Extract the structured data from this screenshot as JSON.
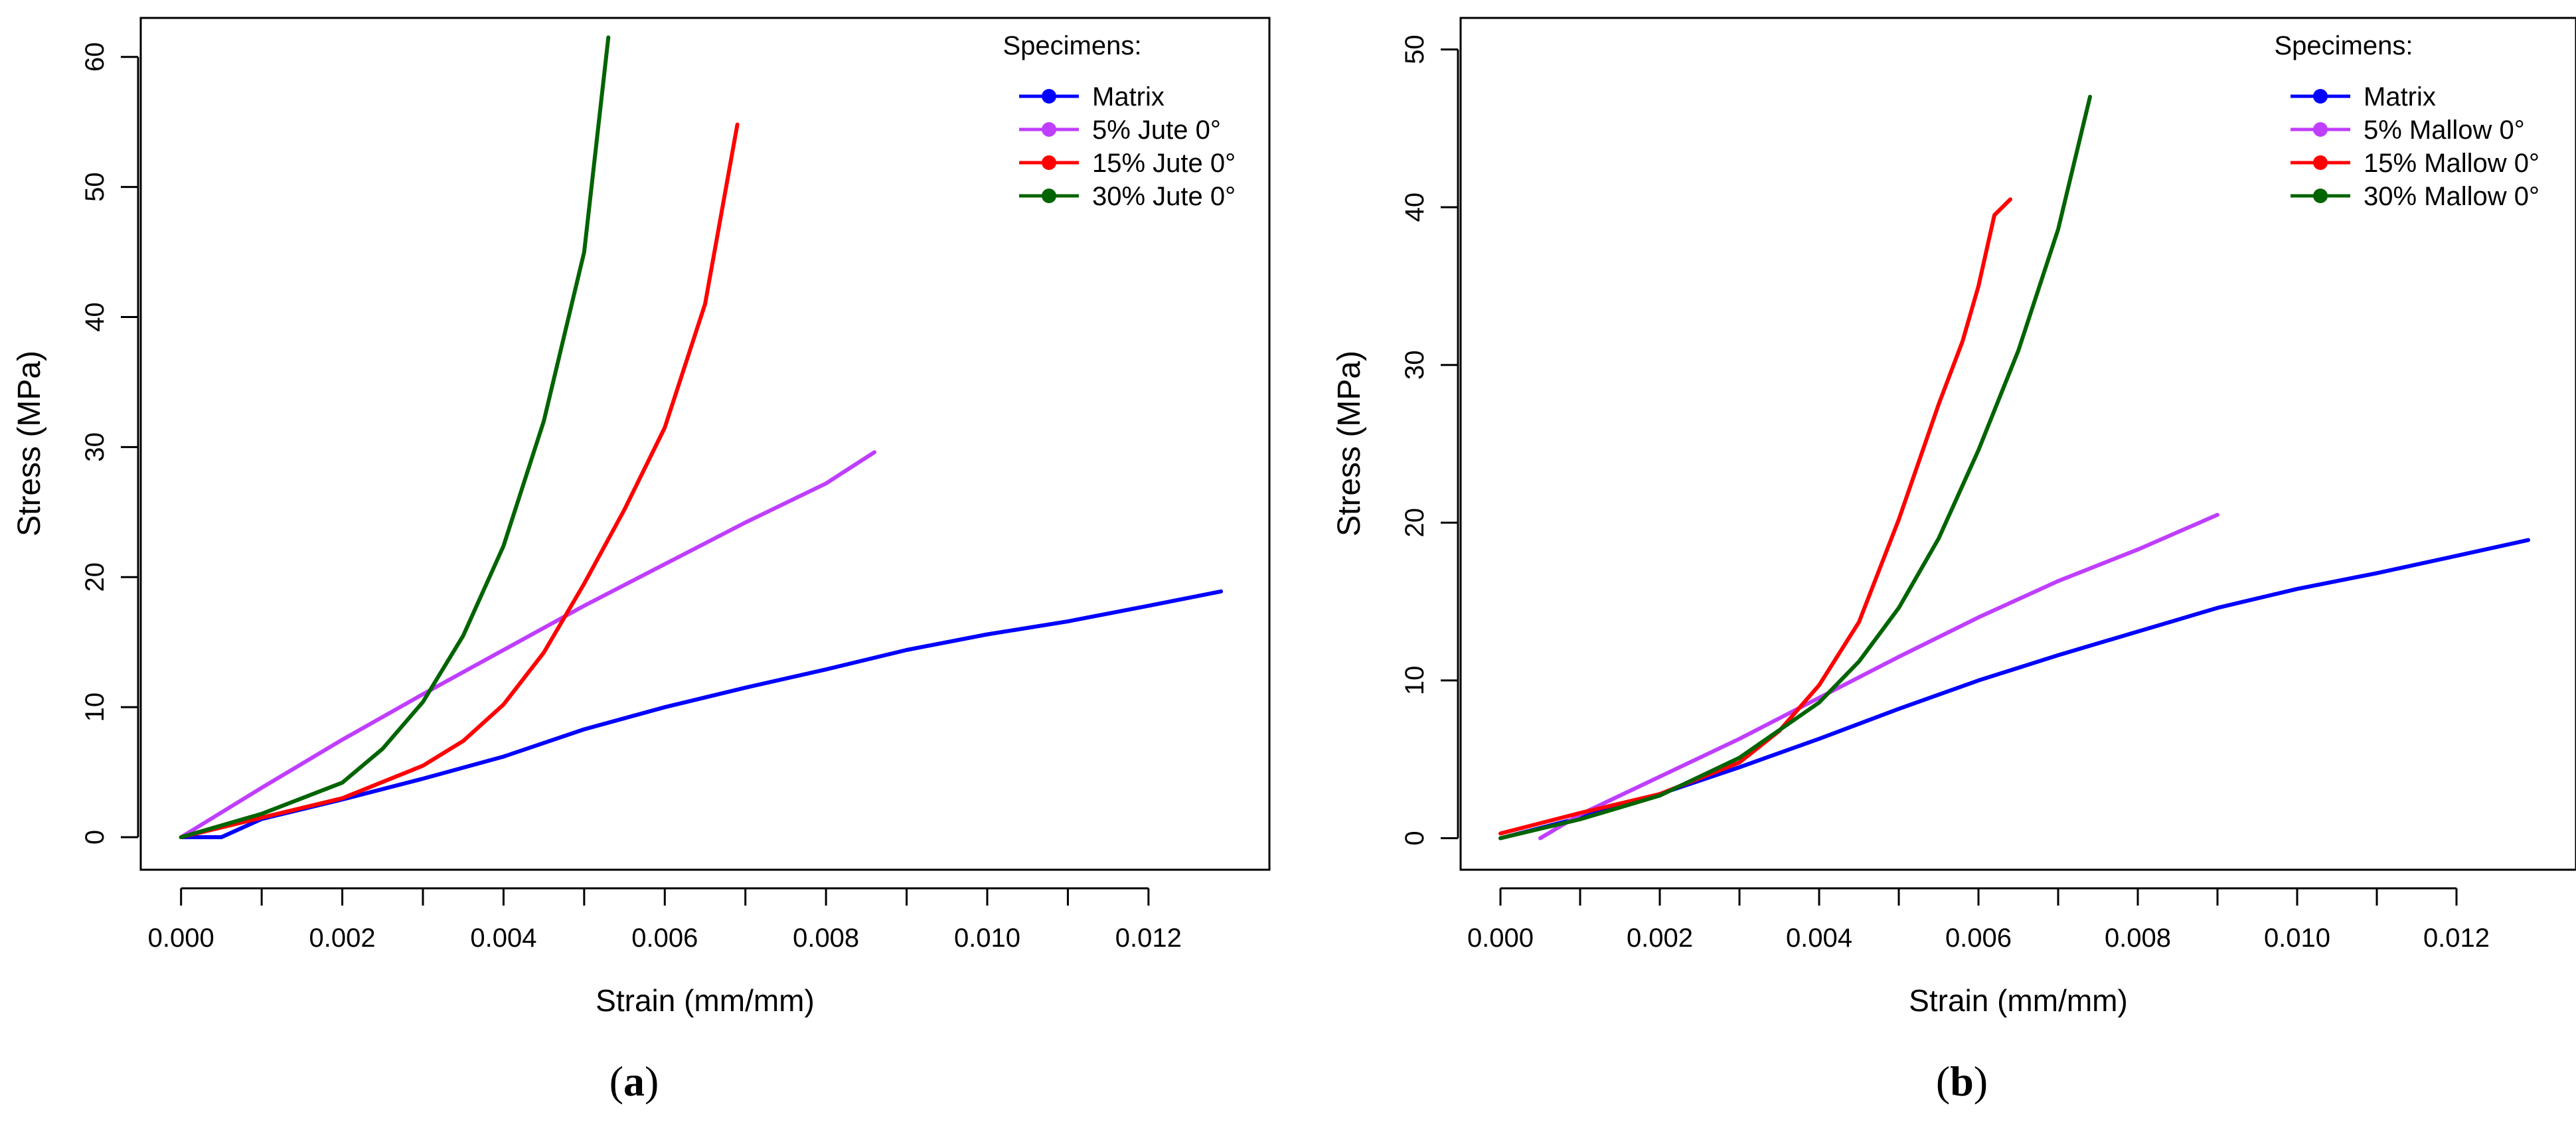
{
  "chart_data": [
    {
      "type": "line",
      "panel_label": "a",
      "xlabel": "Strain (mm/mm)",
      "ylabel": "Stress (MPa)",
      "xlim": [
        -0.0005,
        0.0135
      ],
      "ylim": [
        -2.5,
        63
      ],
      "xticks": [
        0.0,
        0.002,
        0.004,
        0.006,
        0.008,
        0.01,
        0.012
      ],
      "xtick_labels": [
        "0.000",
        "0.002",
        "0.004",
        "0.006",
        "0.008",
        "0.010",
        "0.012"
      ],
      "yticks": [
        0,
        10,
        20,
        30,
        40,
        50,
        60
      ],
      "ytick_labels": [
        "0",
        "10",
        "20",
        "30",
        "40",
        "50",
        "60"
      ],
      "legend_title": "Specimens:",
      "legend_position": "top-right",
      "series": [
        {
          "name": "Matrix",
          "color": "#0000ff",
          "x": [
            0.0,
            0.0005,
            0.001,
            0.002,
            0.003,
            0.004,
            0.005,
            0.006,
            0.007,
            0.008,
            0.009,
            0.01,
            0.011,
            0.012,
            0.0129
          ],
          "y": [
            0.0,
            0.0,
            1.4,
            2.9,
            4.5,
            6.2,
            8.3,
            10.0,
            11.5,
            12.9,
            14.4,
            15.6,
            16.6,
            17.8,
            18.9
          ]
        },
        {
          "name": "5% Jute 0°",
          "color": "#bf3eff",
          "x": [
            0.0,
            0.001,
            0.002,
            0.003,
            0.004,
            0.005,
            0.006,
            0.007,
            0.008,
            0.0086
          ],
          "y": [
            0.0,
            3.8,
            7.5,
            11.0,
            14.4,
            17.8,
            21.0,
            24.2,
            27.2,
            29.6
          ]
        },
        {
          "name": "15% Jute 0°",
          "color": "#ff0000",
          "x": [
            0.0,
            0.001,
            0.002,
            0.003,
            0.0035,
            0.004,
            0.0045,
            0.005,
            0.0055,
            0.006,
            0.0065,
            0.0069
          ],
          "y": [
            0.0,
            1.5,
            3.0,
            5.5,
            7.4,
            10.2,
            14.2,
            19.5,
            25.2,
            31.5,
            41.0,
            54.8
          ]
        },
        {
          "name": "30% Jute 0°",
          "color": "#006400",
          "x": [
            0.0,
            0.001,
            0.002,
            0.0025,
            0.003,
            0.0035,
            0.004,
            0.0045,
            0.005,
            0.0053
          ],
          "y": [
            0.0,
            1.8,
            4.2,
            6.8,
            10.4,
            15.5,
            22.4,
            32.0,
            45.0,
            61.5
          ]
        }
      ]
    },
    {
      "type": "line",
      "panel_label": "b",
      "xlabel": "Strain (mm/mm)",
      "ylabel": "Stress (MPa)",
      "xlim": [
        -0.0005,
        0.0135
      ],
      "ylim": [
        -2,
        52
      ],
      "xticks": [
        0.0,
        0.002,
        0.004,
        0.006,
        0.008,
        0.01,
        0.012
      ],
      "xtick_labels": [
        "0.000",
        "0.002",
        "0.004",
        "0.006",
        "0.008",
        "0.010",
        "0.012"
      ],
      "yticks": [
        0,
        10,
        20,
        30,
        40,
        50
      ],
      "ytick_labels": [
        "0",
        "10",
        "20",
        "30",
        "40",
        "50"
      ],
      "legend_title": "Specimens:",
      "legend_position": "top-right",
      "series": [
        {
          "name": "Matrix",
          "color": "#0000ff",
          "x": [
            0.0,
            0.001,
            0.002,
            0.003,
            0.004,
            0.005,
            0.006,
            0.007,
            0.008,
            0.009,
            0.01,
            0.011,
            0.012,
            0.0129
          ],
          "y": [
            0.0,
            1.3,
            2.8,
            4.5,
            6.3,
            8.2,
            10.0,
            11.6,
            13.1,
            14.6,
            15.8,
            16.8,
            17.9,
            18.9
          ]
        },
        {
          "name": "5% Mallow 0°",
          "color": "#bf3eff",
          "x": [
            0.0005,
            0.001,
            0.002,
            0.003,
            0.004,
            0.005,
            0.006,
            0.007,
            0.008,
            0.009
          ],
          "y": [
            0.0,
            1.5,
            3.9,
            6.3,
            8.9,
            11.5,
            14.0,
            16.3,
            18.3,
            20.5
          ]
        },
        {
          "name": "15% Mallow 0°",
          "color": "#ff0000",
          "x": [
            0.0,
            0.001,
            0.002,
            0.003,
            0.0035,
            0.004,
            0.0045,
            0.005,
            0.0055,
            0.0058,
            0.006,
            0.0062,
            0.0064
          ],
          "y": [
            0.3,
            1.6,
            2.8,
            4.8,
            6.8,
            9.7,
            13.7,
            20.2,
            27.5,
            31.5,
            35.0,
            39.5,
            40.5
          ]
        },
        {
          "name": "30% Mallow 0°",
          "color": "#006400",
          "x": [
            0.0,
            0.001,
            0.002,
            0.003,
            0.004,
            0.0045,
            0.005,
            0.0055,
            0.006,
            0.0065,
            0.007,
            0.0074
          ],
          "y": [
            0.0,
            1.2,
            2.7,
            5.1,
            8.6,
            11.2,
            14.6,
            19.0,
            24.6,
            30.9,
            38.6,
            47.0
          ]
        }
      ]
    }
  ]
}
